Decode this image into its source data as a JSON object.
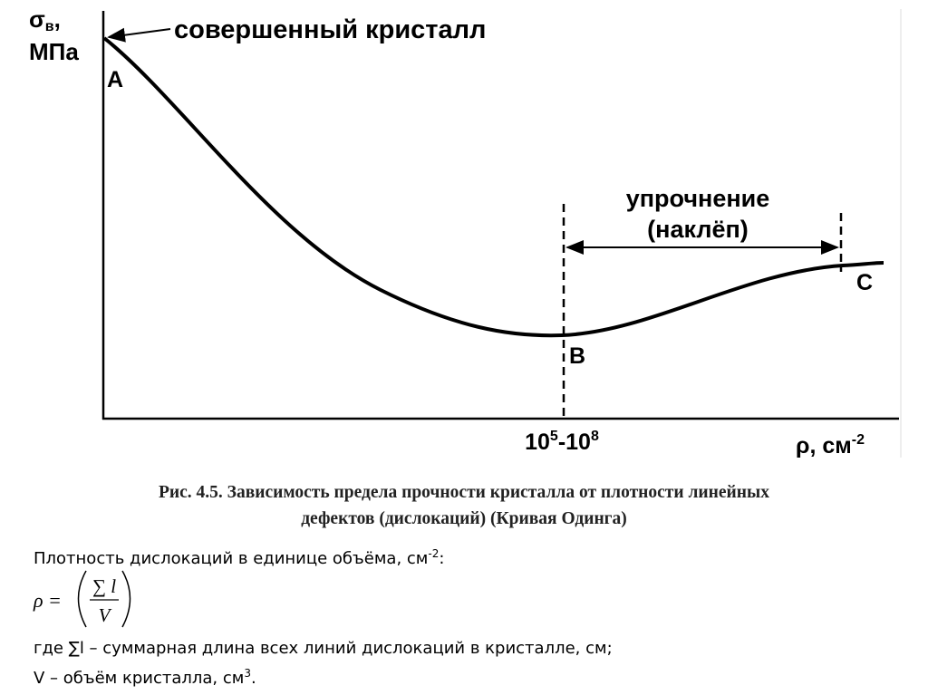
{
  "diagram": {
    "y_axis": {
      "symbol": "σ",
      "subscript": "в",
      "comma": ",",
      "unit": "МПа"
    },
    "annotation": "совершенный кристалл",
    "points": [
      "A",
      "B",
      "C"
    ],
    "region": {
      "line1": "упрочнение",
      "line2": "(наклёп)"
    },
    "x_marker": {
      "base1": "10",
      "exp1": "5",
      "base2": "-10",
      "exp2": "8"
    },
    "x_axis": {
      "label": "ρ, см",
      "exp": "-2"
    }
  },
  "caption": {
    "line1": "Рис. 4.5. Зависимость предела прочности кристалла от плотности линейных",
    "line2": "дефектов (дислокаций) (Кривая Одинга)"
  },
  "body": {
    "line1": {
      "text": "Плотность дислокаций в единице объёма, см",
      "exp": "-2",
      "tail": ":"
    },
    "formula": {
      "lhs": "ρ =",
      "numerator": "∑ l",
      "denominator": "V"
    },
    "line2": "где ∑l – суммарная длина всех линий дислокаций в кристалле, см;",
    "line3": {
      "text": "V – объём кристалла, см",
      "exp": "3",
      "tail": "."
    }
  }
}
